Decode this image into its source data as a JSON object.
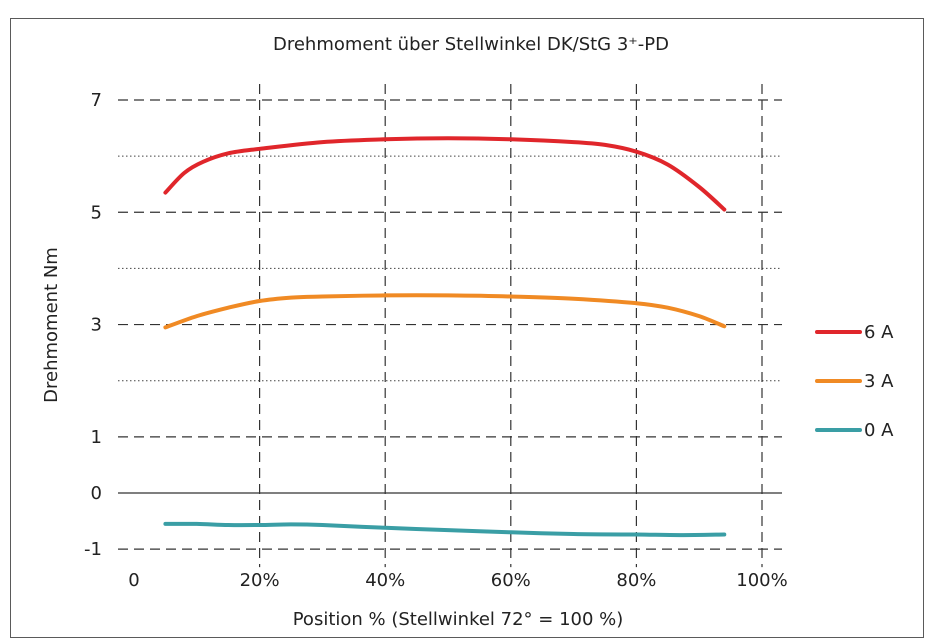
{
  "chart_data": {
    "type": "line",
    "title": "Drehmoment über Stellwinkel DK/StG 3⁺-PD",
    "xlabel": "Position % (Stellwinkel 72° = 100 %)",
    "ylabel": "Drehmoment Nm",
    "xlim": [
      0,
      100
    ],
    "ylim": [
      -1,
      7
    ],
    "x_ticks": [
      "0",
      "20%",
      "40%",
      "60%",
      "80%",
      "100%"
    ],
    "y_ticks": [
      "-1",
      "0",
      "1",
      "3",
      "5",
      "7"
    ],
    "x_tick_values": [
      0,
      20,
      40,
      60,
      80,
      100
    ],
    "y_tick_values": [
      -1,
      0,
      1,
      3,
      5,
      7
    ],
    "dashed_y_grid": [
      -1,
      1,
      3,
      5,
      7
    ],
    "dotted_y_grid": [
      2,
      4,
      6
    ],
    "grid": true,
    "legend_position": "right",
    "series": [
      {
        "name": "6 A",
        "color": "#e0262b",
        "x": [
          5,
          8,
          11,
          15,
          20,
          30,
          40,
          50,
          60,
          70,
          75,
          80,
          85,
          90,
          94
        ],
        "y": [
          5.35,
          5.7,
          5.9,
          6.05,
          6.13,
          6.25,
          6.3,
          6.32,
          6.3,
          6.25,
          6.2,
          6.08,
          5.85,
          5.45,
          5.05
        ]
      },
      {
        "name": "3 A",
        "color": "#f08a24",
        "x": [
          5,
          10,
          15,
          20,
          25,
          30,
          40,
          50,
          60,
          70,
          80,
          85,
          90,
          94
        ],
        "y": [
          2.95,
          3.15,
          3.3,
          3.42,
          3.48,
          3.5,
          3.52,
          3.52,
          3.5,
          3.46,
          3.38,
          3.3,
          3.15,
          2.97
        ]
      },
      {
        "name": "0 A",
        "color": "#3a9ea5",
        "x": [
          5,
          10,
          15,
          20,
          25,
          30,
          40,
          50,
          60,
          70,
          80,
          87,
          94
        ],
        "y": [
          -0.55,
          -0.55,
          -0.57,
          -0.57,
          -0.56,
          -0.57,
          -0.62,
          -0.66,
          -0.7,
          -0.73,
          -0.74,
          -0.75,
          -0.74
        ]
      }
    ]
  }
}
